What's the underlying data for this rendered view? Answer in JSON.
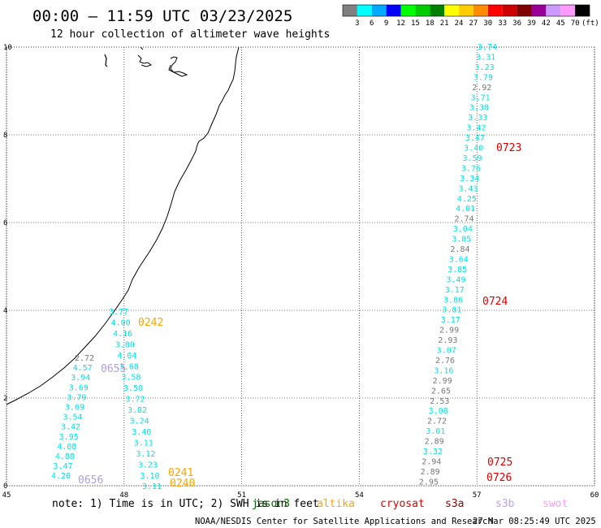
{
  "header": {
    "title": "00:00 — 11:59 UTC 03/23/2025",
    "subtitle": "12 hour collection of altimeter wave heights"
  },
  "legend": {
    "labels": [
      "3",
      "6",
      "9",
      "12",
      "15",
      "18",
      "21",
      "24",
      "27",
      "30",
      "33",
      "36",
      "39",
      "42",
      "45",
      "70"
    ],
    "unit": "(ft)",
    "colors": [
      "#808080",
      "#00ffff",
      "#00aaff",
      "#0000ff",
      "#00ff00",
      "#00cc00",
      "#008000",
      "#ffff00",
      "#ffcc00",
      "#ff8c00",
      "#ff0000",
      "#cc0000",
      "#800000",
      "#990099",
      "#cc99ff",
      "#ff99ff",
      "#000000"
    ]
  },
  "axes": {
    "x_ticks": [
      "45",
      "48",
      "51",
      "54",
      "57",
      "60"
    ],
    "y_ticks": [
      "0",
      "2",
      "4",
      "6",
      "8",
      "10"
    ],
    "x_range": [
      45,
      60
    ],
    "y_range": [
      0,
      10
    ]
  },
  "track_west_a": {
    "values": [
      "3.77",
      "4.00",
      "4.16",
      "3.80",
      "4.04",
      "3.68",
      "3.58",
      "3.50",
      "3.72",
      "3.82",
      "3.24",
      "3.40",
      "3.11",
      "3.12",
      "3.23",
      "3.10",
      "3.11"
    ],
    "colors": [
      "c",
      "c",
      "c",
      "c",
      "c",
      "c",
      "c",
      "c",
      "c",
      "c",
      "c",
      "c",
      "c",
      "c",
      "c",
      "c",
      "c"
    ]
  },
  "track_west_b": {
    "values": [
      "2.72",
      "4.57",
      "3.94",
      "3.69",
      "3.79",
      "3.69",
      "3.54",
      "3.42",
      "3.95",
      "4.08",
      "4.88",
      "3.47",
      "4.20"
    ],
    "colors": [
      "g",
      "c",
      "c",
      "c",
      "c",
      "c",
      "c",
      "c",
      "c",
      "c",
      "c",
      "c",
      "c"
    ]
  },
  "track_east": {
    "values": [
      "3.74",
      "3.31",
      "3.23",
      "3.79",
      "2.92",
      "3.71",
      "3.38",
      "3.33",
      "3.42",
      "3.47",
      "3.40",
      "3.59",
      "3.76",
      "3.34",
      "3.43",
      "4.25",
      "4.01",
      "2.74",
      "3.04",
      "3.85",
      "2.84",
      "3.64",
      "3.85",
      "3.49",
      "3.17",
      "3.86",
      "3.81",
      "3.17",
      "2.99",
      "2.93",
      "3.07",
      "2.76",
      "3.16",
      "2.99",
      "2.65",
      "2.53",
      "3.08",
      "2.72",
      "3.01",
      "2.89",
      "3.32",
      "2.94",
      "2.89",
      "2.95"
    ],
    "colors": [
      "c",
      "c",
      "c",
      "c",
      "g",
      "c",
      "c",
      "c",
      "c",
      "c",
      "c",
      "c",
      "c",
      "c",
      "c",
      "c",
      "c",
      "g",
      "c",
      "c",
      "g",
      "c",
      "c",
      "c",
      "c",
      "c",
      "c",
      "c",
      "g",
      "g",
      "c",
      "g",
      "c",
      "g",
      "g",
      "g",
      "c",
      "g",
      "c",
      "g",
      "c",
      "g",
      "g",
      "g"
    ]
  },
  "pass_labels": [
    {
      "text": "0242",
      "color": "#ffa500"
    },
    {
      "text": "0655",
      "color": "#b09ee6"
    },
    {
      "text": "0656",
      "color": "#b09ee6"
    },
    {
      "text": "0241",
      "color": "#ffa500"
    },
    {
      "text": "0240",
      "color": "#ffa500"
    },
    {
      "text": "0723",
      "color": "#e00000"
    },
    {
      "text": "0724",
      "color": "#e00000"
    },
    {
      "text": "0725",
      "color": "#e00000"
    },
    {
      "text": "0726",
      "color": "#e00000"
    }
  ],
  "footer": {
    "note_text": "note: 1) Time is in UTC; 2) SWH is in feet",
    "satellites": [
      {
        "name": "jason3",
        "color": "#006400"
      },
      {
        "name": "altika",
        "color": "#ffa500"
      },
      {
        "name": "cryosat",
        "color": "#e00000"
      },
      {
        "name": "s3a",
        "color": "#990000"
      },
      {
        "name": "s3b",
        "color": "#c0a0f0"
      },
      {
        "name": "swot",
        "color": "#ff99ff"
      }
    ],
    "credit": "NOAA/NESDIS Center for Satellite Applications and Research",
    "timestamp": "27 Mar 08:25:49 UTC 2025"
  }
}
